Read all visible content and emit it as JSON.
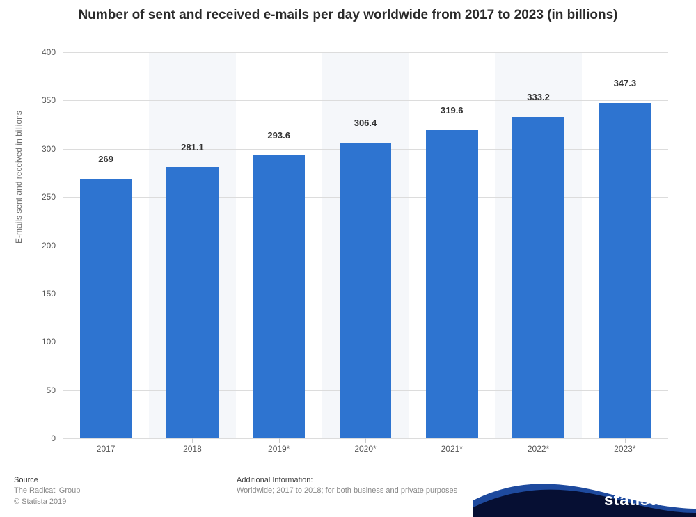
{
  "title": "Number of sent and received e-mails per day worldwide from 2017 to 2023 (in billions)",
  "chart": {
    "type": "bar",
    "categories": [
      "2017",
      "2018",
      "2019*",
      "2020*",
      "2021*",
      "2022*",
      "2023*"
    ],
    "values": [
      269,
      281.1,
      293.6,
      306.4,
      319.6,
      333.2,
      347.3
    ],
    "value_labels": [
      "269",
      "281.1",
      "293.6",
      "306.4",
      "319.6",
      "333.2",
      "347.3"
    ],
    "bar_color": "#2e74d0",
    "band_color_alt": "#f5f7fa",
    "band_color_base": "#ffffff",
    "grid_color": "#dcdcdc",
    "ylabel": "E-mails sent and received in billions",
    "ylim": [
      0,
      400
    ],
    "yticks": [
      0,
      50,
      100,
      150,
      200,
      250,
      300,
      350,
      400
    ],
    "bar_width_ratio": 0.6,
    "label_fontsize": 13,
    "axis_fontsize": 12,
    "title_fontsize": 19
  },
  "footer": {
    "source_heading": "Source",
    "source_line1": "The Radicati Group",
    "source_line2": "© Statista 2019",
    "additional_heading": "Additional Information:",
    "additional_line1": "Worldwide; 2017 to 2018; for both business and private purposes",
    "logo_text": "statista",
    "wave_color_dark": "#060f33",
    "wave_color_light": "#1e4a9e"
  }
}
